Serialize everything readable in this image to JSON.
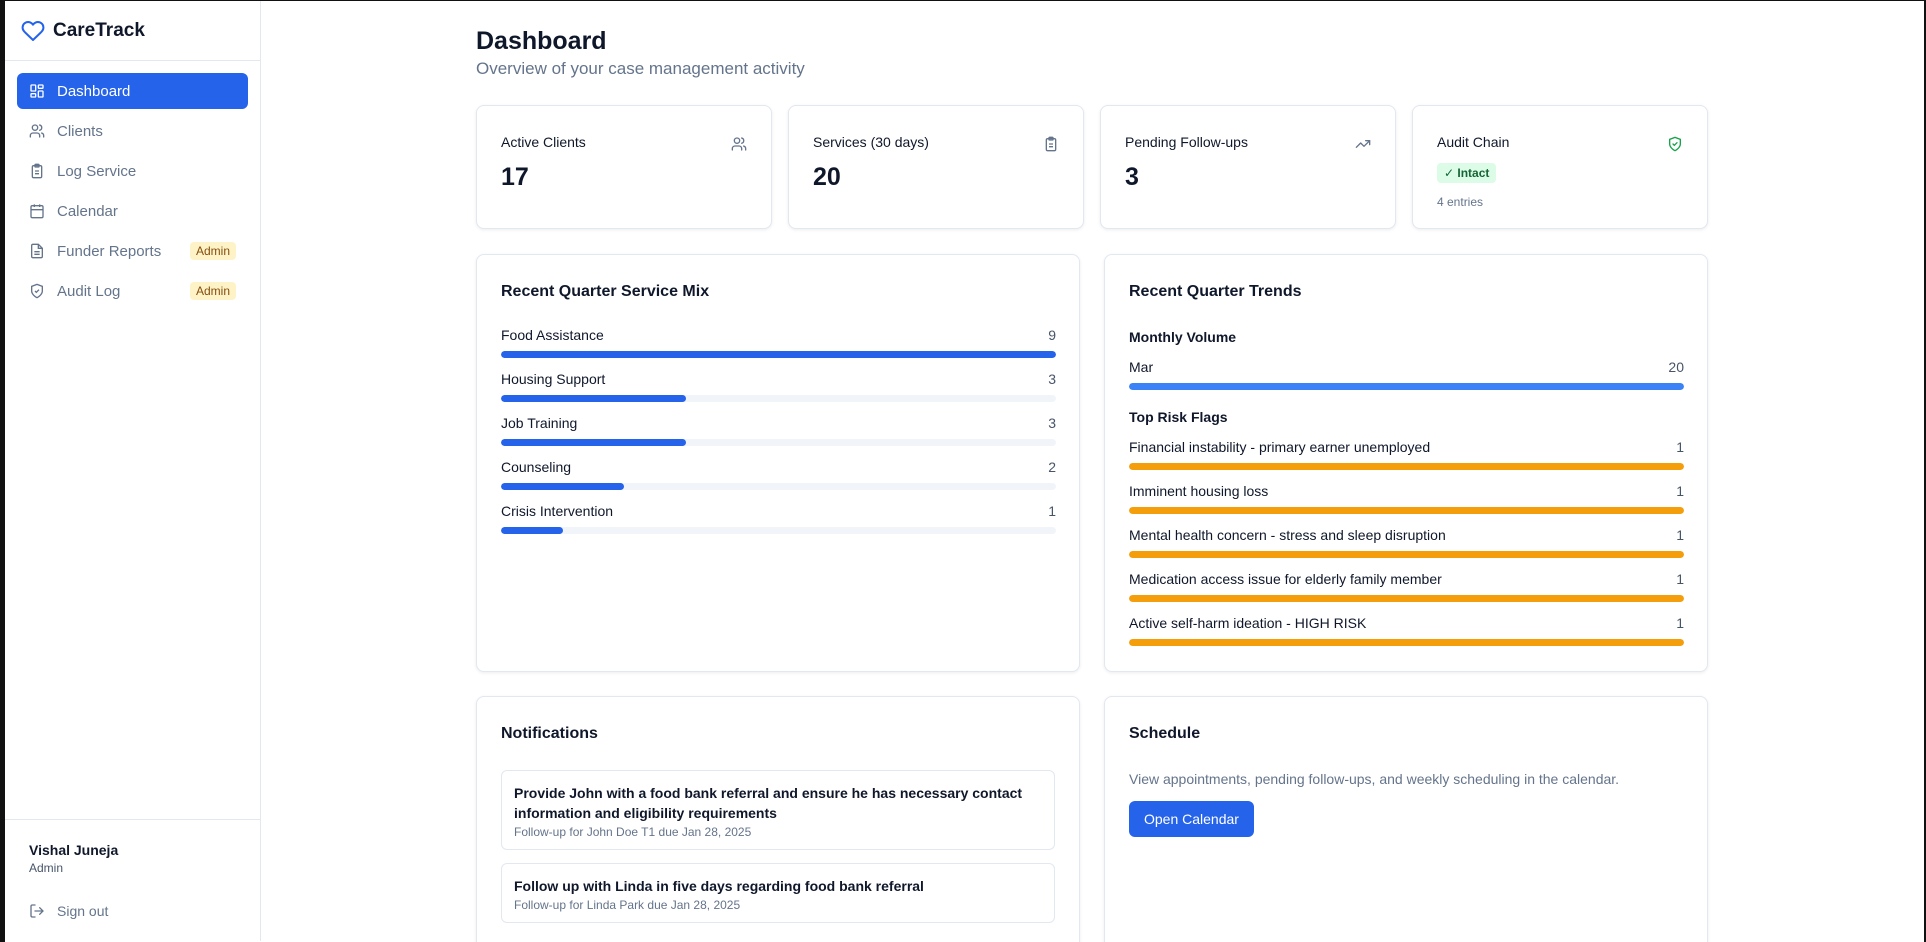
{
  "app": {
    "name": "CareTrack"
  },
  "sidebar": {
    "items": [
      {
        "label": "Dashboard",
        "icon": "layout-grid-icon",
        "active": true
      },
      {
        "label": "Clients",
        "icon": "users-icon"
      },
      {
        "label": "Log Service",
        "icon": "clipboard-icon"
      },
      {
        "label": "Calendar",
        "icon": "calendar-icon"
      },
      {
        "label": "Funder Reports",
        "icon": "file-text-icon",
        "badge": "Admin"
      },
      {
        "label": "Audit Log",
        "icon": "shield-icon",
        "badge": "Admin"
      }
    ],
    "user": {
      "name": "Vishal Juneja",
      "role": "Admin"
    },
    "signout_label": "Sign out"
  },
  "page": {
    "title": "Dashboard",
    "subtitle": "Overview of your case management activity"
  },
  "stats": [
    {
      "label": "Active Clients",
      "value": "17",
      "icon": "users-icon"
    },
    {
      "label": "Services (30 days)",
      "value": "20",
      "icon": "clipboard-icon"
    },
    {
      "label": "Pending Follow-ups",
      "value": "3",
      "icon": "trending-up-icon"
    },
    {
      "label": "Audit Chain",
      "status": "✓ Intact",
      "note": "4 entries",
      "icon": "shield-check-icon"
    }
  ],
  "service_mix": {
    "title": "Recent Quarter Service Mix",
    "max": 9,
    "color": "#2563eb",
    "items": [
      {
        "label": "Food Assistance",
        "value": 9
      },
      {
        "label": "Housing Support",
        "value": 3
      },
      {
        "label": "Job Training",
        "value": 3
      },
      {
        "label": "Counseling",
        "value": 2
      },
      {
        "label": "Crisis Intervention",
        "value": 1
      }
    ]
  },
  "trends": {
    "title": "Recent Quarter Trends",
    "monthly_volume": {
      "heading": "Monthly Volume",
      "color": "#3b82f6",
      "max": 20,
      "items": [
        {
          "label": "Mar",
          "value": 20
        }
      ]
    },
    "risk_flags": {
      "heading": "Top Risk Flags",
      "color": "#f59e0b",
      "max": 1,
      "items": [
        {
          "label": "Financial instability - primary earner unemployed",
          "value": 1
        },
        {
          "label": "Imminent housing loss",
          "value": 1
        },
        {
          "label": "Mental health concern - stress and sleep disruption",
          "value": 1
        },
        {
          "label": "Medication access issue for elderly family member",
          "value": 1
        },
        {
          "label": "Active self-harm ideation - HIGH RISK",
          "value": 1
        }
      ]
    }
  },
  "notifications": {
    "title": "Notifications",
    "items": [
      {
        "title": "Provide John with a food bank referral and ensure he has necessary contact information and eligibility requirements",
        "sub": "Follow-up for John Doe T1 due Jan 28, 2025"
      },
      {
        "title": "Follow up with Linda in five days regarding food bank referral",
        "sub": "Follow-up for Linda Park due Jan 28, 2025"
      }
    ]
  },
  "schedule": {
    "title": "Schedule",
    "text": "View appointments, pending follow-ups, and weekly scheduling in the calendar.",
    "button_label": "Open Calendar"
  }
}
